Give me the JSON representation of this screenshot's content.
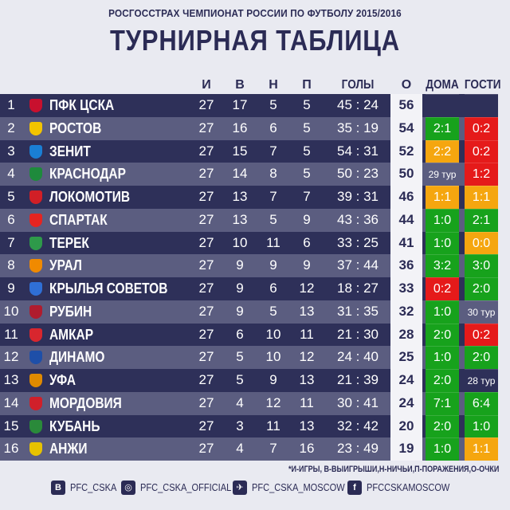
{
  "header": {
    "subtitle": "РОСГОССТРАХ ЧЕМПИОНАТ РОССИИ ПО ФУТБОЛУ 2015/2016",
    "title": "ТУРНИРНАЯ ТАБЛИЦА"
  },
  "columns": {
    "games": "И",
    "wins": "В",
    "draws": "Н",
    "losses": "П",
    "goals": "ГОЛЫ",
    "points": "О",
    "home": "ДОМА",
    "away": "ГОСТИ"
  },
  "rows": [
    {
      "pos": "1",
      "team": "ПФК ЦСКА",
      "logo_color": "#c8102e",
      "g": "27",
      "w": "17",
      "d": "5",
      "l": "5",
      "goals": "45 : 24",
      "pts": "56",
      "home": "",
      "home_color": "none",
      "away": "",
      "away_color": "none"
    },
    {
      "pos": "2",
      "team": "РОСТОВ",
      "logo_color": "#f2c400",
      "g": "27",
      "w": "16",
      "d": "6",
      "l": "5",
      "goals": "35 : 19",
      "pts": "54",
      "home": "2:1",
      "home_color": "green",
      "away": "0:2",
      "away_color": "red"
    },
    {
      "pos": "3",
      "team": "ЗЕНИТ",
      "logo_color": "#1a7fd4",
      "g": "27",
      "w": "15",
      "d": "7",
      "l": "5",
      "goals": "54 : 31",
      "pts": "52",
      "home": "2:2",
      "home_color": "orange",
      "away": "0:2",
      "away_color": "red"
    },
    {
      "pos": "4",
      "team": "КРАСНОДАР",
      "logo_color": "#1e8a3c",
      "g": "27",
      "w": "14",
      "d": "8",
      "l": "5",
      "goals": "50 : 23",
      "pts": "50",
      "home": "29 тур",
      "home_color": "none",
      "away": "1:2",
      "away_color": "red"
    },
    {
      "pos": "5",
      "team": "ЛОКОМОТИВ",
      "logo_color": "#d11f26",
      "g": "27",
      "w": "13",
      "d": "7",
      "l": "7",
      "goals": "39 : 31",
      "pts": "46",
      "home": "1:1",
      "home_color": "orange",
      "away": "1:1",
      "away_color": "orange"
    },
    {
      "pos": "6",
      "team": "СПАРТАК",
      "logo_color": "#e52421",
      "g": "27",
      "w": "13",
      "d": "5",
      "l": "9",
      "goals": "43 : 36",
      "pts": "44",
      "home": "1:0",
      "home_color": "green",
      "away": "2:1",
      "away_color": "green"
    },
    {
      "pos": "7",
      "team": "ТЕРЕК",
      "logo_color": "#2e9a4a",
      "g": "27",
      "w": "10",
      "d": "11",
      "l": "6",
      "goals": "33 : 25",
      "pts": "41",
      "home": "1:0",
      "home_color": "green",
      "away": "0:0",
      "away_color": "orange"
    },
    {
      "pos": "8",
      "team": "УРАЛ",
      "logo_color": "#f08a00",
      "g": "27",
      "w": "9",
      "d": "9",
      "l": "9",
      "goals": "37 : 44",
      "pts": "36",
      "home": "3:2",
      "home_color": "green",
      "away": "3:0",
      "away_color": "green"
    },
    {
      "pos": "9",
      "team": "КРЫЛЬЯ СОВЕТОВ",
      "logo_color": "#2f6fd6",
      "g": "27",
      "w": "9",
      "d": "6",
      "l": "12",
      "goals": "18 : 27",
      "pts": "33",
      "home": "0:2",
      "home_color": "red",
      "away": "2:0",
      "away_color": "green"
    },
    {
      "pos": "10",
      "team": "РУБИН",
      "logo_color": "#b01c2e",
      "g": "27",
      "w": "9",
      "d": "5",
      "l": "13",
      "goals": "31 : 35",
      "pts": "32",
      "home": "1:0",
      "home_color": "green",
      "away": "30 тур",
      "away_color": "none"
    },
    {
      "pos": "11",
      "team": "АМКАР",
      "logo_color": "#d8262e",
      "g": "27",
      "w": "6",
      "d": "10",
      "l": "11",
      "goals": "21 : 30",
      "pts": "28",
      "home": "2:0",
      "home_color": "green",
      "away": "0:2",
      "away_color": "red"
    },
    {
      "pos": "12",
      "team": "ДИНАМО",
      "logo_color": "#1e4fa8",
      "g": "27",
      "w": "5",
      "d": "10",
      "l": "12",
      "goals": "24 : 40",
      "pts": "25",
      "home": "1:0",
      "home_color": "green",
      "away": "2:0",
      "away_color": "green"
    },
    {
      "pos": "13",
      "team": "УФА",
      "logo_color": "#e08a00",
      "g": "27",
      "w": "5",
      "d": "9",
      "l": "13",
      "goals": "21 : 39",
      "pts": "24",
      "home": "2:0",
      "home_color": "green",
      "away": "28 тур",
      "away_color": "none"
    },
    {
      "pos": "14",
      "team": "МОРДОВИЯ",
      "logo_color": "#d0202a",
      "g": "27",
      "w": "4",
      "d": "12",
      "l": "11",
      "goals": "30 : 41",
      "pts": "24",
      "home": "7:1",
      "home_color": "green",
      "away": "6:4",
      "away_color": "green"
    },
    {
      "pos": "15",
      "team": "КУБАНЬ",
      "logo_color": "#2a8a3a",
      "g": "27",
      "w": "3",
      "d": "11",
      "l": "13",
      "goals": "32 : 42",
      "pts": "20",
      "home": "2:0",
      "home_color": "green",
      "away": "1:0",
      "away_color": "green"
    },
    {
      "pos": "16",
      "team": "АНЖИ",
      "logo_color": "#e6c200",
      "g": "27",
      "w": "4",
      "d": "7",
      "l": "16",
      "goals": "23 : 49",
      "pts": "19",
      "home": "1:0",
      "home_color": "green",
      "away": "1:1",
      "away_color": "orange"
    }
  ],
  "legend": "*И-ИГРЫ, В-ВЫИГРЫШИ,Н-НИЧЬИ,П-ПОРАЖЕНИЯ,О-ОЧКИ",
  "footer": {
    "vk": {
      "icon": "vk-icon",
      "glyph": "B",
      "label": "PFC_CSKA"
    },
    "instagram": {
      "icon": "instagram-icon",
      "glyph": "◎",
      "label": "PFC_CSKA_OFFICIAL"
    },
    "twitter": {
      "icon": "twitter-icon",
      "glyph": "✈",
      "label": "PFC_CSKA_MOSCOW"
    },
    "facebook": {
      "icon": "facebook-icon",
      "glyph": "f",
      "label": "PFCCSKAMOSCOW"
    }
  },
  "colors": {
    "green": "#17a21c",
    "red": "#e51a1a",
    "orange": "#f5a60f",
    "row_dark": "#2e3059",
    "row_light": "#5b5d80",
    "text": "#2b2b55"
  }
}
